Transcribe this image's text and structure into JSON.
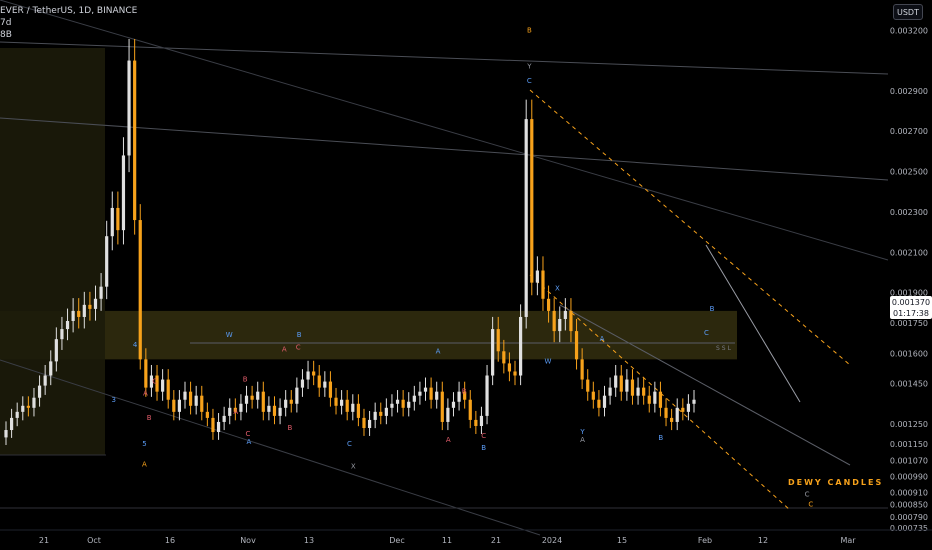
{
  "header": {
    "title": "EVER / TetherUS, 1D, BINANCE",
    "line2": "7d",
    "line3": "8B"
  },
  "toolbar": {
    "currency": "USDT"
  },
  "last_price": {
    "value": "0.001370",
    "countdown": "01:17:38"
  },
  "watermark": "DEWY CANDLES",
  "ssl_label": "SSL",
  "colors": {
    "background": "#000000",
    "bull_candle": "#e0e0e0",
    "bear_candle": "#f7a21b",
    "zone": "#3b3512",
    "wave_blue": "#5b9cf6",
    "wave_orange": "#f7a21b",
    "wave_red": "#e05c6a",
    "trendline": "#5a5d66"
  },
  "chart_data": {
    "type": "candlestick",
    "y_axis": {
      "range": [
        0.0007,
        0.00335
      ],
      "ticks": [
        "0.003200",
        "0.002900",
        "0.002700",
        "0.002500",
        "0.002300",
        "0.002100",
        "0.001900",
        "0.001750",
        "0.001600",
        "0.001450",
        "0.001370",
        "0.001250",
        "0.001150",
        "0.001070",
        "0.000990",
        "0.000910",
        "0.000850",
        "0.000790",
        "0.000735"
      ]
    },
    "x_axis": {
      "ticks": [
        "21",
        "Oct",
        "16",
        "Nov",
        "13",
        "Dec",
        "11",
        "21",
        "2024",
        "15",
        "Feb",
        "12",
        "Mar"
      ]
    },
    "closes": [
      0.00122,
      0.00128,
      0.00131,
      0.00134,
      0.00133,
      0.00138,
      0.00144,
      0.00149,
      0.00156,
      0.00167,
      0.00172,
      0.00176,
      0.00181,
      0.00178,
      0.00184,
      0.00182,
      0.00187,
      0.00193,
      0.00218,
      0.00232,
      0.00221,
      0.00258,
      0.00305,
      0.00226,
      0.00157,
      0.00143,
      0.00149,
      0.00141,
      0.00147,
      0.00137,
      0.00131,
      0.00137,
      0.00141,
      0.00134,
      0.00139,
      0.00131,
      0.00128,
      0.00121,
      0.00126,
      0.00129,
      0.00133,
      0.00131,
      0.00135,
      0.00139,
      0.00137,
      0.00141,
      0.00131,
      0.00134,
      0.00129,
      0.00133,
      0.00137,
      0.00135,
      0.00143,
      0.00147,
      0.00151,
      0.00149,
      0.00143,
      0.00146,
      0.00138,
      0.00134,
      0.00137,
      0.00131,
      0.00135,
      0.00128,
      0.00123,
      0.00127,
      0.00131,
      0.00129,
      0.00133,
      0.00135,
      0.00137,
      0.00133,
      0.00136,
      0.00139,
      0.00141,
      0.00143,
      0.00137,
      0.00141,
      0.00126,
      0.00133,
      0.00136,
      0.00141,
      0.00137,
      0.00127,
      0.00124,
      0.00129,
      0.00149,
      0.00172,
      0.00161,
      0.00155,
      0.00151,
      0.00149,
      0.00178,
      0.00276,
      0.00195,
      0.00201,
      0.00187,
      0.00181,
      0.00171,
      0.00177,
      0.00181,
      0.00171,
      0.00157,
      0.00147,
      0.00141,
      0.00137,
      0.00133,
      0.00139,
      0.00143,
      0.00149,
      0.00141,
      0.00147,
      0.00139,
      0.00143,
      0.00139,
      0.00135,
      0.00141,
      0.00133,
      0.00128,
      0.00126,
      0.00133,
      0.00131,
      0.00135,
      0.00137
    ],
    "zone": {
      "y_range": [
        0.00157,
        0.00181
      ]
    },
    "wave_labels": [
      {
        "text": "5",
        "x": 0.155,
        "y": 0.00114,
        "color": "blue"
      },
      {
        "text": "A",
        "x": 0.155,
        "y": 0.00104,
        "color": "orange"
      },
      {
        "text": "4",
        "x": 0.145,
        "y": 0.00163,
        "color": "blue"
      },
      {
        "text": "3",
        "x": 0.122,
        "y": 0.00136,
        "color": "blue"
      },
      {
        "text": "C",
        "x": 0.166,
        "y": 0.00145,
        "color": "red"
      },
      {
        "text": "A",
        "x": 0.156,
        "y": 0.00139,
        "color": "red"
      },
      {
        "text": "B",
        "x": 0.16,
        "y": 0.00127,
        "color": "red"
      },
      {
        "text": "W",
        "x": 0.246,
        "y": 0.00168,
        "color": "blue"
      },
      {
        "text": "A",
        "x": 0.253,
        "y": 0.0013,
        "color": "red"
      },
      {
        "text": "B",
        "x": 0.263,
        "y": 0.00146,
        "color": "red"
      },
      {
        "text": "C",
        "x": 0.266,
        "y": 0.00119,
        "color": "red"
      },
      {
        "text": "A",
        "x": 0.267,
        "y": 0.00115,
        "color": "blue"
      },
      {
        "text": "A",
        "x": 0.305,
        "y": 0.00161,
        "color": "red"
      },
      {
        "text": "B",
        "x": 0.321,
        "y": 0.00168,
        "color": "blue"
      },
      {
        "text": "C",
        "x": 0.32,
        "y": 0.00162,
        "color": "red"
      },
      {
        "text": "B",
        "x": 0.311,
        "y": 0.00122,
        "color": "red"
      },
      {
        "text": "C",
        "x": 0.375,
        "y": 0.00114,
        "color": "blue"
      },
      {
        "text": "X",
        "x": 0.379,
        "y": 0.00103,
        "color": "grey"
      },
      {
        "text": "A",
        "x": 0.47,
        "y": 0.0016,
        "color": "blue"
      },
      {
        "text": "B",
        "x": 0.498,
        "y": 0.0014,
        "color": "red"
      },
      {
        "text": "A",
        "x": 0.481,
        "y": 0.00116,
        "color": "red"
      },
      {
        "text": "C",
        "x": 0.519,
        "y": 0.00118,
        "color": "red"
      },
      {
        "text": "B",
        "x": 0.519,
        "y": 0.00112,
        "color": "blue"
      },
      {
        "text": "B",
        "x": 0.568,
        "y": 0.00319,
        "color": "orange"
      },
      {
        "text": "Y",
        "x": 0.568,
        "y": 0.00301,
        "color": "grey"
      },
      {
        "text": "C",
        "x": 0.568,
        "y": 0.00294,
        "color": "blue"
      },
      {
        "text": "X",
        "x": 0.598,
        "y": 0.00191,
        "color": "blue"
      },
      {
        "text": "W",
        "x": 0.588,
        "y": 0.00155,
        "color": "blue"
      },
      {
        "text": "A",
        "x": 0.646,
        "y": 0.00166,
        "color": "blue"
      },
      {
        "text": "Y",
        "x": 0.625,
        "y": 0.0012,
        "color": "blue"
      },
      {
        "text": "A",
        "x": 0.625,
        "y": 0.00116,
        "color": "grey"
      },
      {
        "text": "B",
        "x": 0.709,
        "y": 0.00117,
        "color": "blue"
      },
      {
        "text": "B",
        "x": 0.764,
        "y": 0.00181,
        "color": "blue"
      },
      {
        "text": "C",
        "x": 0.758,
        "y": 0.00169,
        "color": "blue"
      },
      {
        "text": "C",
        "x": 0.866,
        "y": 0.00089,
        "color": "grey"
      },
      {
        "text": "C",
        "x": 0.87,
        "y": 0.00084,
        "color": "orange"
      }
    ]
  }
}
